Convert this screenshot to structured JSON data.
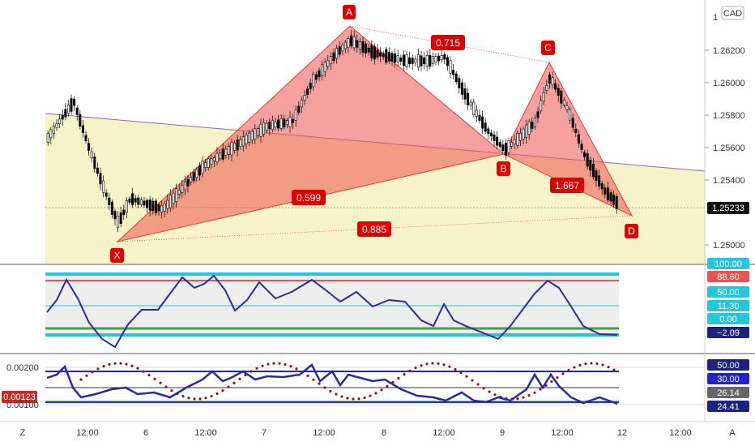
{
  "pattern": {
    "points": {
      "x": "X",
      "a": "A",
      "b": "B",
      "c": "C",
      "d": "D"
    },
    "ratios": {
      "xb": "0.599",
      "ac": "0.715",
      "bd": "1.667",
      "xd": "0.885"
    }
  },
  "price_axis": {
    "currency": "CAD",
    "ticks": [
      "1.26200",
      "1.26000",
      "1.25800",
      "1.25600",
      "1.25400",
      "1.25000"
    ],
    "top_tick": "1",
    "current_price": "1.25233"
  },
  "time_axis": {
    "ticks": [
      "12:00",
      "6",
      "12:00",
      "7",
      "12:00",
      "8",
      "12:00",
      "9",
      "12:00",
      "12",
      "12:00"
    ],
    "left_button": "Z",
    "right_button": "A"
  },
  "indicator1": {
    "badges": [
      "100.00",
      "88.60",
      "50.00",
      "11.30",
      "0.00",
      "−2.09"
    ],
    "badge_colors": [
      "#26c6da",
      "#ef5350",
      "#26c6da",
      "#26c6da",
      "#26c6da",
      "#1a237e"
    ]
  },
  "indicator2": {
    "ticks": [
      "0.00200",
      "0.00100"
    ],
    "left_badge": "0.00123",
    "badges": [
      "50.00",
      "30.00",
      "26.14",
      "24.41"
    ]
  },
  "colors": {
    "bull": "#ffffff",
    "bear": "#000000",
    "pattern_fill": "#ef5350",
    "label_bg": "#e00000",
    "channel_fill": "#f6f3c8",
    "osc_line": "#2a2a9a"
  }
}
